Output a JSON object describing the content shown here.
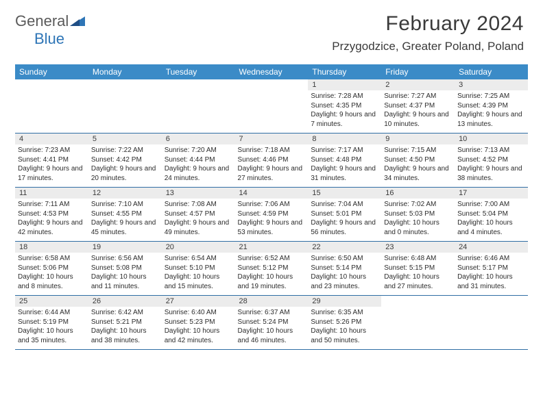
{
  "brand": {
    "part1": "General",
    "part2": "Blue"
  },
  "title": "February 2024",
  "location": "Przygodzice, Greater Poland, Poland",
  "colors": {
    "header_bg": "#3b8bc7",
    "row_divider": "#2e6da4",
    "daynum_bg": "#ececec",
    "brand_gray": "#5a5a5a",
    "brand_blue": "#2e75b6"
  },
  "weekdays": [
    "Sunday",
    "Monday",
    "Tuesday",
    "Wednesday",
    "Thursday",
    "Friday",
    "Saturday"
  ],
  "weeks": [
    [
      {
        "n": "",
        "sr": "",
        "ss": "",
        "dl": ""
      },
      {
        "n": "",
        "sr": "",
        "ss": "",
        "dl": ""
      },
      {
        "n": "",
        "sr": "",
        "ss": "",
        "dl": ""
      },
      {
        "n": "",
        "sr": "",
        "ss": "",
        "dl": ""
      },
      {
        "n": "1",
        "sr": "Sunrise: 7:28 AM",
        "ss": "Sunset: 4:35 PM",
        "dl": "Daylight: 9 hours and 7 minutes."
      },
      {
        "n": "2",
        "sr": "Sunrise: 7:27 AM",
        "ss": "Sunset: 4:37 PM",
        "dl": "Daylight: 9 hours and 10 minutes."
      },
      {
        "n": "3",
        "sr": "Sunrise: 7:25 AM",
        "ss": "Sunset: 4:39 PM",
        "dl": "Daylight: 9 hours and 13 minutes."
      }
    ],
    [
      {
        "n": "4",
        "sr": "Sunrise: 7:23 AM",
        "ss": "Sunset: 4:41 PM",
        "dl": "Daylight: 9 hours and 17 minutes."
      },
      {
        "n": "5",
        "sr": "Sunrise: 7:22 AM",
        "ss": "Sunset: 4:42 PM",
        "dl": "Daylight: 9 hours and 20 minutes."
      },
      {
        "n": "6",
        "sr": "Sunrise: 7:20 AM",
        "ss": "Sunset: 4:44 PM",
        "dl": "Daylight: 9 hours and 24 minutes."
      },
      {
        "n": "7",
        "sr": "Sunrise: 7:18 AM",
        "ss": "Sunset: 4:46 PM",
        "dl": "Daylight: 9 hours and 27 minutes."
      },
      {
        "n": "8",
        "sr": "Sunrise: 7:17 AM",
        "ss": "Sunset: 4:48 PM",
        "dl": "Daylight: 9 hours and 31 minutes."
      },
      {
        "n": "9",
        "sr": "Sunrise: 7:15 AM",
        "ss": "Sunset: 4:50 PM",
        "dl": "Daylight: 9 hours and 34 minutes."
      },
      {
        "n": "10",
        "sr": "Sunrise: 7:13 AM",
        "ss": "Sunset: 4:52 PM",
        "dl": "Daylight: 9 hours and 38 minutes."
      }
    ],
    [
      {
        "n": "11",
        "sr": "Sunrise: 7:11 AM",
        "ss": "Sunset: 4:53 PM",
        "dl": "Daylight: 9 hours and 42 minutes."
      },
      {
        "n": "12",
        "sr": "Sunrise: 7:10 AM",
        "ss": "Sunset: 4:55 PM",
        "dl": "Daylight: 9 hours and 45 minutes."
      },
      {
        "n": "13",
        "sr": "Sunrise: 7:08 AM",
        "ss": "Sunset: 4:57 PM",
        "dl": "Daylight: 9 hours and 49 minutes."
      },
      {
        "n": "14",
        "sr": "Sunrise: 7:06 AM",
        "ss": "Sunset: 4:59 PM",
        "dl": "Daylight: 9 hours and 53 minutes."
      },
      {
        "n": "15",
        "sr": "Sunrise: 7:04 AM",
        "ss": "Sunset: 5:01 PM",
        "dl": "Daylight: 9 hours and 56 minutes."
      },
      {
        "n": "16",
        "sr": "Sunrise: 7:02 AM",
        "ss": "Sunset: 5:03 PM",
        "dl": "Daylight: 10 hours and 0 minutes."
      },
      {
        "n": "17",
        "sr": "Sunrise: 7:00 AM",
        "ss": "Sunset: 5:04 PM",
        "dl": "Daylight: 10 hours and 4 minutes."
      }
    ],
    [
      {
        "n": "18",
        "sr": "Sunrise: 6:58 AM",
        "ss": "Sunset: 5:06 PM",
        "dl": "Daylight: 10 hours and 8 minutes."
      },
      {
        "n": "19",
        "sr": "Sunrise: 6:56 AM",
        "ss": "Sunset: 5:08 PM",
        "dl": "Daylight: 10 hours and 11 minutes."
      },
      {
        "n": "20",
        "sr": "Sunrise: 6:54 AM",
        "ss": "Sunset: 5:10 PM",
        "dl": "Daylight: 10 hours and 15 minutes."
      },
      {
        "n": "21",
        "sr": "Sunrise: 6:52 AM",
        "ss": "Sunset: 5:12 PM",
        "dl": "Daylight: 10 hours and 19 minutes."
      },
      {
        "n": "22",
        "sr": "Sunrise: 6:50 AM",
        "ss": "Sunset: 5:14 PM",
        "dl": "Daylight: 10 hours and 23 minutes."
      },
      {
        "n": "23",
        "sr": "Sunrise: 6:48 AM",
        "ss": "Sunset: 5:15 PM",
        "dl": "Daylight: 10 hours and 27 minutes."
      },
      {
        "n": "24",
        "sr": "Sunrise: 6:46 AM",
        "ss": "Sunset: 5:17 PM",
        "dl": "Daylight: 10 hours and 31 minutes."
      }
    ],
    [
      {
        "n": "25",
        "sr": "Sunrise: 6:44 AM",
        "ss": "Sunset: 5:19 PM",
        "dl": "Daylight: 10 hours and 35 minutes."
      },
      {
        "n": "26",
        "sr": "Sunrise: 6:42 AM",
        "ss": "Sunset: 5:21 PM",
        "dl": "Daylight: 10 hours and 38 minutes."
      },
      {
        "n": "27",
        "sr": "Sunrise: 6:40 AM",
        "ss": "Sunset: 5:23 PM",
        "dl": "Daylight: 10 hours and 42 minutes."
      },
      {
        "n": "28",
        "sr": "Sunrise: 6:37 AM",
        "ss": "Sunset: 5:24 PM",
        "dl": "Daylight: 10 hours and 46 minutes."
      },
      {
        "n": "29",
        "sr": "Sunrise: 6:35 AM",
        "ss": "Sunset: 5:26 PM",
        "dl": "Daylight: 10 hours and 50 minutes."
      },
      {
        "n": "",
        "sr": "",
        "ss": "",
        "dl": ""
      },
      {
        "n": "",
        "sr": "",
        "ss": "",
        "dl": ""
      }
    ]
  ]
}
